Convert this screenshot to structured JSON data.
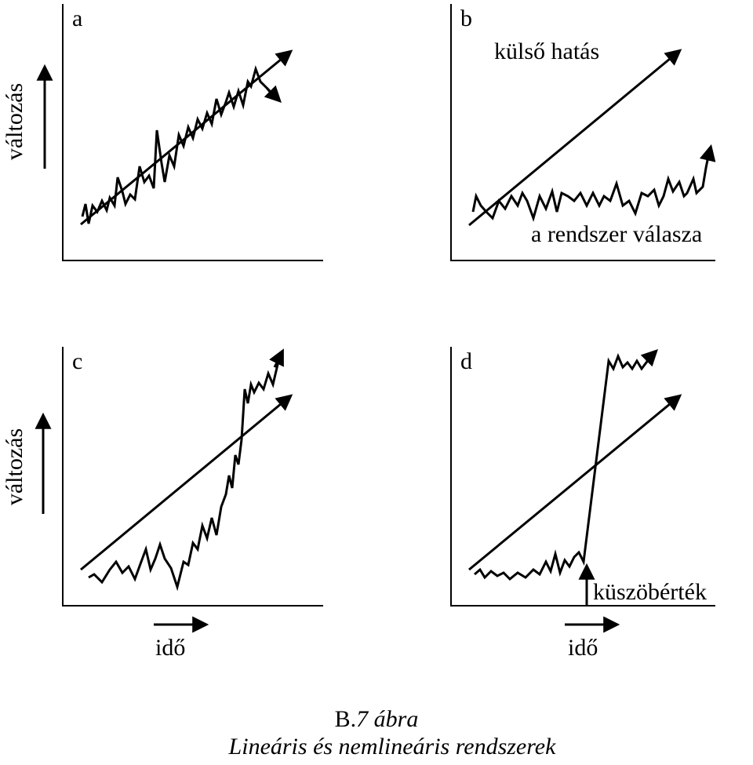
{
  "panels": [
    {
      "id": "a",
      "label": "a",
      "annotations": []
    },
    {
      "id": "b",
      "label": "b",
      "annotations": [
        "külső hatás",
        "a rendszer válasza"
      ]
    },
    {
      "id": "c",
      "label": "c",
      "annotations": []
    },
    {
      "id": "d",
      "label": "d",
      "annotations": [
        "küszöbérték"
      ]
    }
  ],
  "axes": {
    "y_label": "változás",
    "x_label": "idő"
  },
  "caption": {
    "number_prefix": "B.",
    "number_rest": "7 ábra",
    "title": "Lineáris és nemlineáris rendszerek"
  }
}
